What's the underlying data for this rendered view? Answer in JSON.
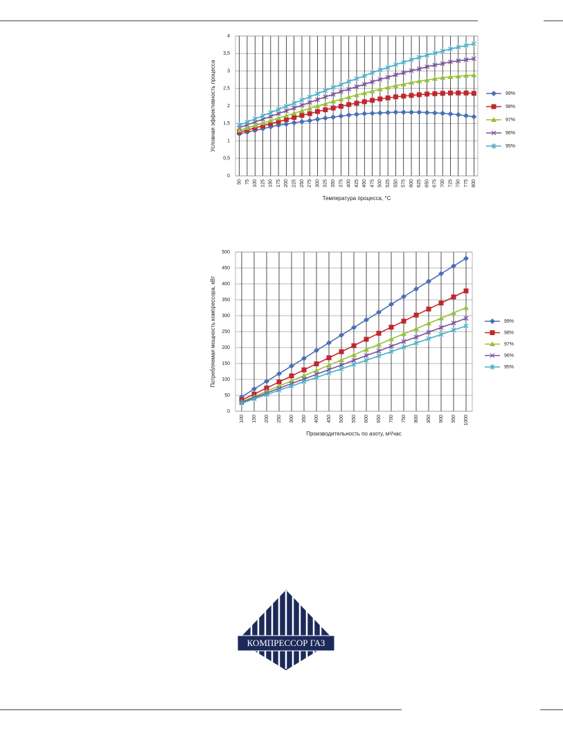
{
  "chart_data": [
    {
      "type": "line",
      "x_label": "Температура процесса, °С",
      "y_label": "Условная эффективность процесса",
      "categories": [
        50,
        75,
        100,
        125,
        150,
        175,
        200,
        225,
        250,
        275,
        300,
        325,
        350,
        375,
        400,
        425,
        450,
        475,
        500,
        525,
        550,
        575,
        600,
        625,
        650,
        675,
        700,
        725,
        750,
        775,
        800
      ],
      "ylim": [
        0,
        4
      ],
      "yticks": [
        0,
        {
          "value": 0.5,
          "label": "0,5"
        },
        1,
        {
          "value": 1.5,
          "label": "1,5"
        },
        2,
        {
          "value": 2.5,
          "label": "2,5"
        },
        3,
        {
          "value": 3.5,
          "label": "3,5"
        },
        4
      ],
      "grid": true,
      "xgrid": true,
      "legend": "right",
      "series": [
        {
          "name": "99%",
          "color": "#4a6fb5",
          "marker": "diamond",
          "values": [
            1.2,
            1.25,
            1.3,
            1.35,
            1.4,
            1.45,
            1.48,
            1.52,
            1.55,
            1.58,
            1.62,
            1.65,
            1.68,
            1.71,
            1.74,
            1.76,
            1.78,
            1.79,
            1.8,
            1.81,
            1.82,
            1.82,
            1.82,
            1.82,
            1.81,
            1.8,
            1.79,
            1.77,
            1.75,
            1.72,
            1.69
          ]
        },
        {
          "name": "98%",
          "color": "#c0272d",
          "marker": "square",
          "values": [
            1.25,
            1.31,
            1.37,
            1.43,
            1.49,
            1.55,
            1.61,
            1.67,
            1.73,
            1.78,
            1.84,
            1.89,
            1.94,
            1.99,
            2.04,
            2.08,
            2.12,
            2.16,
            2.2,
            2.23,
            2.26,
            2.28,
            2.3,
            2.32,
            2.34,
            2.35,
            2.36,
            2.37,
            2.37,
            2.37,
            2.36
          ]
        },
        {
          "name": "97%",
          "color": "#98c03c",
          "marker": "triangle",
          "values": [
            1.3,
            1.37,
            1.44,
            1.51,
            1.58,
            1.65,
            1.72,
            1.79,
            1.86,
            1.93,
            2.0,
            2.06,
            2.13,
            2.19,
            2.25,
            2.31,
            2.37,
            2.42,
            2.48,
            2.53,
            2.58,
            2.62,
            2.67,
            2.71,
            2.74,
            2.78,
            2.81,
            2.83,
            2.85,
            2.87,
            2.88
          ]
        },
        {
          "name": "96%",
          "color": "#7b4f9d",
          "marker": "x",
          "values": [
            1.38,
            1.46,
            1.54,
            1.62,
            1.7,
            1.78,
            1.86,
            1.94,
            2.02,
            2.1,
            2.18,
            2.26,
            2.33,
            2.41,
            2.48,
            2.55,
            2.62,
            2.69,
            2.76,
            2.82,
            2.89,
            2.95,
            3.01,
            3.06,
            3.12,
            3.17,
            3.21,
            3.26,
            3.29,
            3.32,
            3.35
          ]
        },
        {
          "name": "95%",
          "color": "#4bacc6",
          "marker": "star",
          "values": [
            1.45,
            1.54,
            1.63,
            1.72,
            1.81,
            1.9,
            1.99,
            2.08,
            2.17,
            2.26,
            2.35,
            2.44,
            2.53,
            2.61,
            2.7,
            2.78,
            2.86,
            2.95,
            3.03,
            3.1,
            3.18,
            3.25,
            3.32,
            3.39,
            3.45,
            3.51,
            3.57,
            3.63,
            3.68,
            3.73,
            3.78
          ]
        }
      ]
    },
    {
      "type": "line",
      "x_label": "Производительность по азоту, м³/час",
      "y_label": "Потребляемая мощность компрессора, кВт",
      "categories": [
        100,
        150,
        200,
        250,
        300,
        350,
        400,
        450,
        500,
        550,
        600,
        650,
        700,
        750,
        800,
        850,
        900,
        950,
        1000
      ],
      "ylim": [
        0,
        500
      ],
      "yticks": [
        0,
        50,
        100,
        150,
        200,
        250,
        300,
        350,
        400,
        450,
        500
      ],
      "grid": true,
      "xgrid": true,
      "legend": "right",
      "series": [
        {
          "name": "99%",
          "color": "#4a6fb5",
          "marker": "diamond",
          "values": [
            45,
            70,
            94,
            118,
            142,
            166,
            191,
            215,
            239,
            263,
            287,
            311,
            336,
            360,
            384,
            408,
            432,
            456,
            480
          ]
        },
        {
          "name": "98%",
          "color": "#c0272d",
          "marker": "square",
          "values": [
            35,
            54,
            73,
            92,
            111,
            130,
            149,
            168,
            187,
            206,
            226,
            245,
            264,
            283,
            302,
            321,
            340,
            359,
            378
          ]
        },
        {
          "name": "97%",
          "color": "#98c03c",
          "marker": "triangle",
          "values": [
            30,
            46,
            63,
            79,
            95,
            112,
            128,
            145,
            161,
            177,
            194,
            210,
            227,
            243,
            259,
            276,
            292,
            309,
            325
          ]
        },
        {
          "name": "96%",
          "color": "#7b4f9d",
          "marker": "x",
          "values": [
            28,
            43,
            57,
            72,
            87,
            101,
            116,
            131,
            145,
            160,
            175,
            189,
            204,
            219,
            233,
            248,
            263,
            277,
            292
          ]
        },
        {
          "name": "95%",
          "color": "#4bacc6",
          "marker": "star",
          "values": [
            25,
            39,
            52,
            66,
            79,
            93,
            106,
            120,
            133,
            147,
            160,
            174,
            187,
            201,
            214,
            228,
            241,
            255,
            268
          ]
        }
      ]
    }
  ],
  "logo": {
    "text": "КОМПРЕССОР ГАЗ"
  }
}
